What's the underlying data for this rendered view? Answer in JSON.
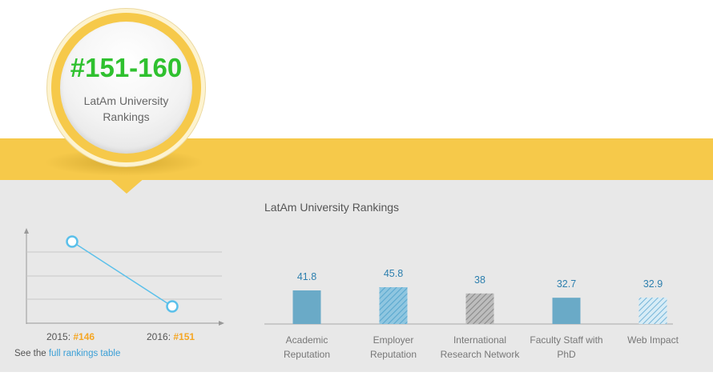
{
  "badge": {
    "rank": "#151-160",
    "label_line1": "LatAm University",
    "label_line2": "Rankings"
  },
  "history": {
    "points": [
      {
        "year_label": "2015:",
        "rank_label": "#146",
        "rank": 146
      },
      {
        "year_label": "2016:",
        "rank_label": "#151",
        "rank": 151
      }
    ],
    "see_prefix": "See the",
    "link_text": "full rankings table"
  },
  "chart_data": {
    "type": "bar",
    "title": "LatAm University Rankings",
    "categories": [
      [
        "Academic",
        "Reputation"
      ],
      [
        "Employer",
        "Reputation"
      ],
      [
        "International",
        "Research Network"
      ],
      [
        "Faculty Staff with",
        "PhD"
      ],
      [
        "Web Impact"
      ]
    ],
    "values": [
      41.8,
      45.8,
      38,
      32.7,
      32.9
    ],
    "value_labels": [
      "41.8",
      "45.8",
      "38",
      "32.7",
      "32.9"
    ],
    "bar_styles": [
      "solid",
      "hatched",
      "gray-hatched",
      "solid",
      "light-hatched"
    ]
  },
  "colors": {
    "accent_band": "#f6c94a",
    "rank_green": "#2fc12f",
    "rank_orange": "#f5a623",
    "bar_blue": "#6aaac7",
    "value_blue": "#2d7fae",
    "line_blue": "#5bc0ea",
    "link_blue": "#3a9fd6"
  }
}
